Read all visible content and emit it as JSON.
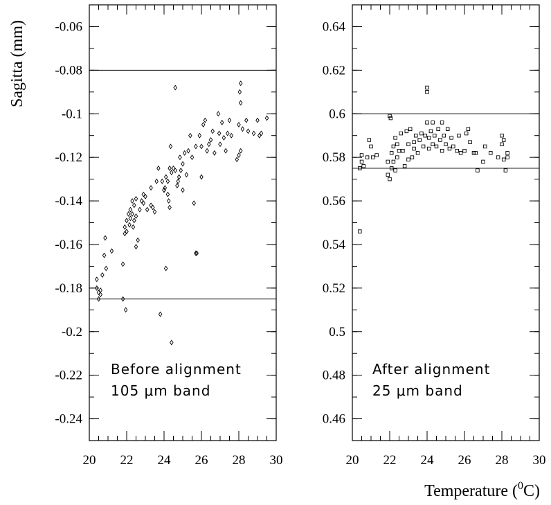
{
  "chart_data": [
    {
      "type": "scatter",
      "marker": "diamond",
      "ylabel": "Sagitta (mm)",
      "xlim": [
        20,
        30
      ],
      "ylim": [
        -0.25,
        -0.05
      ],
      "xticks": [
        20,
        22,
        24,
        26,
        28,
        30
      ],
      "xtick_labels": [
        "20",
        "22",
        "24",
        "26",
        "28",
        "30"
      ],
      "yticks": [
        -0.24,
        -0.22,
        -0.2,
        -0.18,
        -0.16,
        -0.14,
        -0.12,
        -0.1,
        -0.08,
        -0.06
      ],
      "ytick_labels": [
        "-0.24",
        "-0.22",
        "-0.2",
        "-0.18",
        "-0.16",
        "-0.14",
        "-0.12",
        "-0.1",
        "-0.08",
        "-0.06"
      ],
      "reference_lines": [
        -0.08,
        -0.185
      ],
      "annotation": [
        "Before alignment",
        "105 μm band"
      ],
      "points": [
        [
          20.4,
          -0.176
        ],
        [
          20.4,
          -0.18
        ],
        [
          20.5,
          -0.185
        ],
        [
          20.5,
          -0.182
        ],
        [
          20.6,
          -0.181
        ],
        [
          20.6,
          -0.183
        ],
        [
          20.7,
          -0.174
        ],
        [
          20.8,
          -0.165
        ],
        [
          20.85,
          -0.157
        ],
        [
          20.9,
          -0.171
        ],
        [
          21.2,
          -0.163
        ],
        [
          21.8,
          -0.169
        ],
        [
          21.8,
          -0.185
        ],
        [
          21.9,
          -0.152
        ],
        [
          21.9,
          -0.155
        ],
        [
          21.95,
          -0.19
        ],
        [
          22.0,
          -0.149
        ],
        [
          22.0,
          -0.154
        ],
        [
          22.1,
          -0.146
        ],
        [
          22.15,
          -0.151
        ],
        [
          22.2,
          -0.144
        ],
        [
          22.2,
          -0.148
        ],
        [
          22.3,
          -0.14
        ],
        [
          22.3,
          -0.146
        ],
        [
          22.35,
          -0.152
        ],
        [
          22.4,
          -0.142
        ],
        [
          22.4,
          -0.149
        ],
        [
          22.5,
          -0.139
        ],
        [
          22.5,
          -0.147
        ],
        [
          22.5,
          -0.161
        ],
        [
          22.6,
          -0.158
        ],
        [
          22.7,
          -0.144
        ],
        [
          22.8,
          -0.14
        ],
        [
          22.9,
          -0.137
        ],
        [
          22.9,
          -0.141
        ],
        [
          23.0,
          -0.138
        ],
        [
          23.1,
          -0.144
        ],
        [
          23.3,
          -0.134
        ],
        [
          23.3,
          -0.142
        ],
        [
          23.4,
          -0.143
        ],
        [
          23.5,
          -0.145
        ],
        [
          23.6,
          -0.131
        ],
        [
          23.7,
          -0.125
        ],
        [
          23.8,
          -0.192
        ],
        [
          23.9,
          -0.131
        ],
        [
          24.0,
          -0.135
        ],
        [
          24.0,
          -0.135
        ],
        [
          24.05,
          -0.134
        ],
        [
          24.1,
          -0.129
        ],
        [
          24.1,
          -0.171
        ],
        [
          24.2,
          -0.137
        ],
        [
          24.2,
          -0.131
        ],
        [
          24.25,
          -0.14
        ],
        [
          24.3,
          -0.143
        ],
        [
          24.3,
          -0.125
        ],
        [
          24.35,
          -0.115
        ],
        [
          24.4,
          -0.127
        ],
        [
          24.4,
          -0.205
        ],
        [
          24.5,
          -0.125
        ],
        [
          24.6,
          -0.088
        ],
        [
          24.6,
          -0.126
        ],
        [
          24.7,
          -0.133
        ],
        [
          24.75,
          -0.131
        ],
        [
          24.8,
          -0.129
        ],
        [
          24.85,
          -0.12
        ],
        [
          24.9,
          -0.126
        ],
        [
          25.0,
          -0.123
        ],
        [
          25.0,
          -0.135
        ],
        [
          25.1,
          -0.118
        ],
        [
          25.2,
          -0.128
        ],
        [
          25.3,
          -0.117
        ],
        [
          25.4,
          -0.11
        ],
        [
          25.5,
          -0.12
        ],
        [
          25.6,
          -0.141
        ],
        [
          25.7,
          -0.115
        ],
        [
          25.7,
          -0.164
        ],
        [
          25.75,
          -0.164
        ],
        [
          25.9,
          -0.11
        ],
        [
          26.0,
          -0.129
        ],
        [
          26.0,
          -0.115
        ],
        [
          26.1,
          -0.105
        ],
        [
          26.2,
          -0.103
        ],
        [
          26.3,
          -0.117
        ],
        [
          26.4,
          -0.114
        ],
        [
          26.5,
          -0.112
        ],
        [
          26.6,
          -0.108
        ],
        [
          26.7,
          -0.118
        ],
        [
          26.9,
          -0.1
        ],
        [
          26.95,
          -0.109
        ],
        [
          27.0,
          -0.114
        ],
        [
          27.1,
          -0.104
        ],
        [
          27.2,
          -0.111
        ],
        [
          27.3,
          -0.117
        ],
        [
          27.4,
          -0.109
        ],
        [
          27.5,
          -0.103
        ],
        [
          27.6,
          -0.11
        ],
        [
          27.9,
          -0.121
        ],
        [
          28.0,
          -0.105
        ],
        [
          28.0,
          -0.119
        ],
        [
          28.05,
          -0.09
        ],
        [
          28.1,
          -0.086
        ],
        [
          28.1,
          -0.095
        ],
        [
          28.1,
          -0.117
        ],
        [
          28.2,
          -0.107
        ],
        [
          28.4,
          -0.103
        ],
        [
          28.5,
          -0.108
        ],
        [
          28.8,
          -0.109
        ],
        [
          29.0,
          -0.103
        ],
        [
          29.1,
          -0.11
        ],
        [
          29.2,
          -0.109
        ],
        [
          29.5,
          -0.102
        ]
      ]
    },
    {
      "type": "scatter",
      "marker": "square",
      "xlabel": "Temperature (⁰C)",
      "xlabel_main": "Temperature (",
      "xlabel_sup": "0",
      "xlabel_end": "C)",
      "xlim": [
        20,
        30
      ],
      "ylim": [
        0.45,
        0.65
      ],
      "xticks": [
        20,
        22,
        24,
        26,
        28,
        30
      ],
      "xtick_labels": [
        "20",
        "22",
        "24",
        "26",
        "28",
        "30"
      ],
      "yticks": [
        0.46,
        0.48,
        0.5,
        0.52,
        0.54,
        0.56,
        0.58,
        0.6,
        0.62,
        0.64
      ],
      "ytick_labels": [
        "0.46",
        "0.48",
        "0.5",
        "0.52",
        "0.54",
        "0.56",
        "0.58",
        "0.6",
        "0.62",
        "0.64"
      ],
      "reference_lines": [
        0.6,
        0.575
      ],
      "annotation": [
        "After alignment",
        "25 μm band"
      ],
      "points": [
        [
          20.4,
          0.546
        ],
        [
          20.4,
          0.575
        ],
        [
          20.5,
          0.578
        ],
        [
          20.5,
          0.581
        ],
        [
          20.6,
          0.576
        ],
        [
          20.8,
          0.58
        ],
        [
          20.9,
          0.588
        ],
        [
          21.0,
          0.585
        ],
        [
          21.1,
          0.58
        ],
        [
          21.3,
          0.581
        ],
        [
          21.9,
          0.572
        ],
        [
          21.9,
          0.578
        ],
        [
          22.0,
          0.57
        ],
        [
          22.0,
          0.599
        ],
        [
          22.05,
          0.598
        ],
        [
          22.1,
          0.575
        ],
        [
          22.1,
          0.582
        ],
        [
          22.2,
          0.578
        ],
        [
          22.2,
          0.585
        ],
        [
          22.3,
          0.574
        ],
        [
          22.3,
          0.589
        ],
        [
          22.4,
          0.58
        ],
        [
          22.4,
          0.586
        ],
        [
          22.5,
          0.583
        ],
        [
          22.6,
          0.591
        ],
        [
          22.7,
          0.583
        ],
        [
          22.8,
          0.576
        ],
        [
          22.9,
          0.592
        ],
        [
          23.0,
          0.586
        ],
        [
          23.0,
          0.579
        ],
        [
          23.1,
          0.593
        ],
        [
          23.2,
          0.58
        ],
        [
          23.3,
          0.584
        ],
        [
          23.3,
          0.587
        ],
        [
          23.4,
          0.59
        ],
        [
          23.5,
          0.582
        ],
        [
          23.6,
          0.588
        ],
        [
          23.7,
          0.591
        ],
        [
          23.8,
          0.585
        ],
        [
          23.9,
          0.59
        ],
        [
          24.0,
          0.61
        ],
        [
          24.0,
          0.612
        ],
        [
          24.0,
          0.596
        ],
        [
          24.1,
          0.584
        ],
        [
          24.1,
          0.589
        ],
        [
          24.2,
          0.592
        ],
        [
          24.3,
          0.586
        ],
        [
          24.3,
          0.596
        ],
        [
          24.4,
          0.59
        ],
        [
          24.5,
          0.585
        ],
        [
          24.6,
          0.593
        ],
        [
          24.7,
          0.588
        ],
        [
          24.8,
          0.596
        ],
        [
          24.8,
          0.583
        ],
        [
          24.9,
          0.59
        ],
        [
          25.0,
          0.586
        ],
        [
          25.1,
          0.593
        ],
        [
          25.2,
          0.584
        ],
        [
          25.3,
          0.589
        ],
        [
          25.4,
          0.585
        ],
        [
          25.6,
          0.583
        ],
        [
          25.7,
          0.59
        ],
        [
          25.8,
          0.582
        ],
        [
          26.0,
          0.583
        ],
        [
          26.1,
          0.591
        ],
        [
          26.2,
          0.593
        ],
        [
          26.3,
          0.587
        ],
        [
          26.5,
          0.582
        ],
        [
          26.6,
          0.582
        ],
        [
          26.7,
          0.574
        ],
        [
          27.0,
          0.578
        ],
        [
          27.1,
          0.585
        ],
        [
          27.4,
          0.582
        ],
        [
          27.8,
          0.58
        ],
        [
          28.0,
          0.586
        ],
        [
          28.0,
          0.59
        ],
        [
          28.1,
          0.588
        ],
        [
          28.1,
          0.579
        ],
        [
          28.2,
          0.574
        ],
        [
          28.3,
          0.58
        ],
        [
          28.3,
          0.582
        ]
      ]
    }
  ]
}
